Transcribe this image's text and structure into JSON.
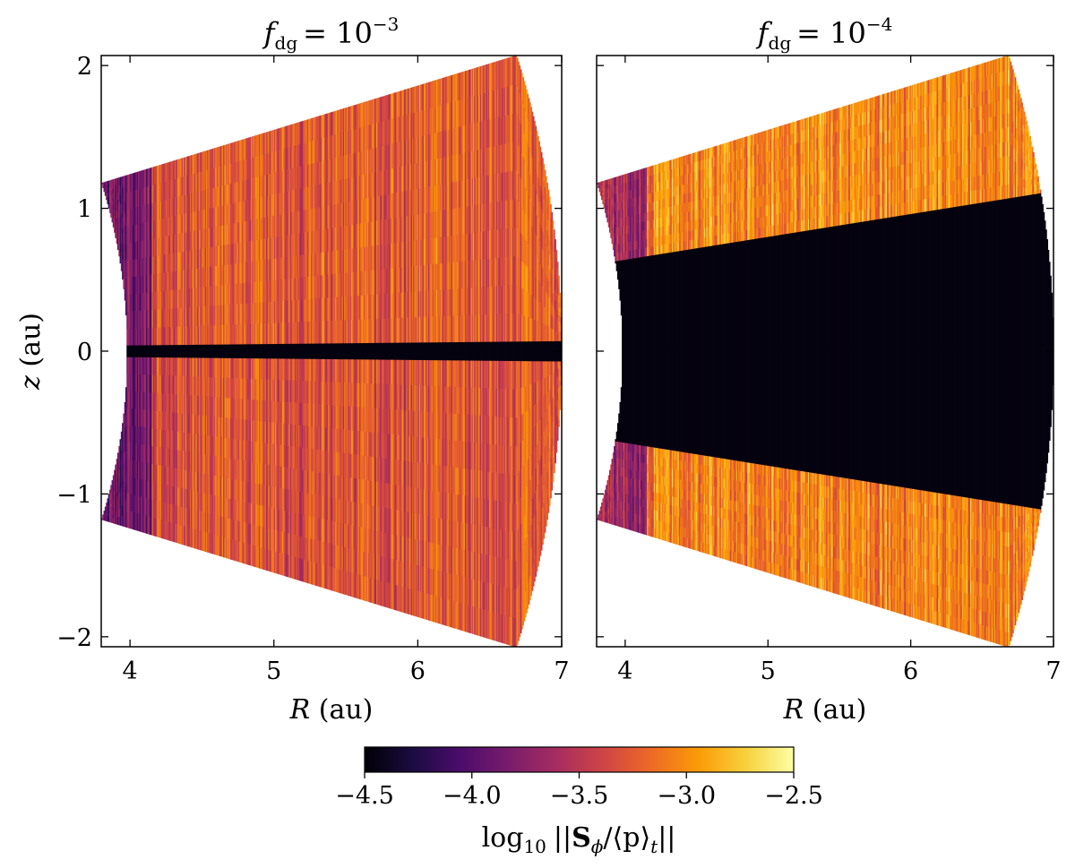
{
  "chart_data": [
    {
      "type": "heatmap",
      "title_var": "f",
      "title_sub": "dg",
      "title_rhs": "= 10",
      "title_exp": "−3",
      "xlabel_var": "R",
      "xlabel_unit": " (au)",
      "ylabel_var": "z",
      "ylabel_unit": " (au)",
      "xlim": [
        3.8,
        7.0
      ],
      "ylim": [
        -2.07,
        2.07
      ],
      "x_ticks": [
        4,
        5,
        6,
        7
      ],
      "x_tick_labels": [
        "4",
        "5",
        "6",
        "7"
      ],
      "y_ticks": [
        -2,
        -1,
        0,
        1,
        2
      ],
      "y_tick_labels": [
        "−2",
        "−1",
        "0",
        "1",
        "2"
      ],
      "domain": {
        "r_inner": 3.98,
        "r_outer": 7.0,
        "z_over_r_max": 0.31
      },
      "midplane_dead_zone_z_over_r": 0.01,
      "mean_level_upper": 0.62,
      "mean_level_lower": 0.6
    },
    {
      "type": "heatmap",
      "title_var": "f",
      "title_sub": "dg",
      "title_rhs": "= 10",
      "title_exp": "−4",
      "xlabel_var": "R",
      "xlabel_unit": " (au)",
      "xlim": [
        3.8,
        7.0
      ],
      "ylim": [
        -2.07,
        2.07
      ],
      "x_ticks": [
        4,
        5,
        6,
        7
      ],
      "x_tick_labels": [
        "4",
        "5",
        "6",
        "7"
      ],
      "y_ticks": [
        -2,
        -1,
        0,
        1,
        2
      ],
      "domain": {
        "r_inner": 3.98,
        "r_outer": 7.0,
        "z_over_r_max": 0.31
      },
      "midplane_dead_zone_z_over_r": 0.16,
      "mean_level_upper": 0.74,
      "mean_level_lower": 0.72
    }
  ],
  "colorbar": {
    "colormap": "inferno",
    "min": -4.5,
    "max": -2.5,
    "ticks": [
      -4.5,
      -4.0,
      -3.5,
      -3.0,
      -2.5
    ],
    "tick_labels": [
      "−4.5",
      "−4.0",
      "−3.5",
      "−3.0",
      "−2.5"
    ],
    "label_fn": "log",
    "label_fn_sub": "10",
    "label_body": "||",
    "label_bold": "S",
    "label_bold_sub": "ϕ",
    "label_rest": "/⟨p⟩",
    "label_rest_sub": "t",
    "label_end": "||"
  },
  "colors": {
    "inferno_stops": [
      "#000004",
      "#1b0c41",
      "#4a0c6b",
      "#781c6d",
      "#a52c60",
      "#cf4446",
      "#ed6925",
      "#fb9b06",
      "#f7d13d",
      "#fcffa4"
    ]
  }
}
